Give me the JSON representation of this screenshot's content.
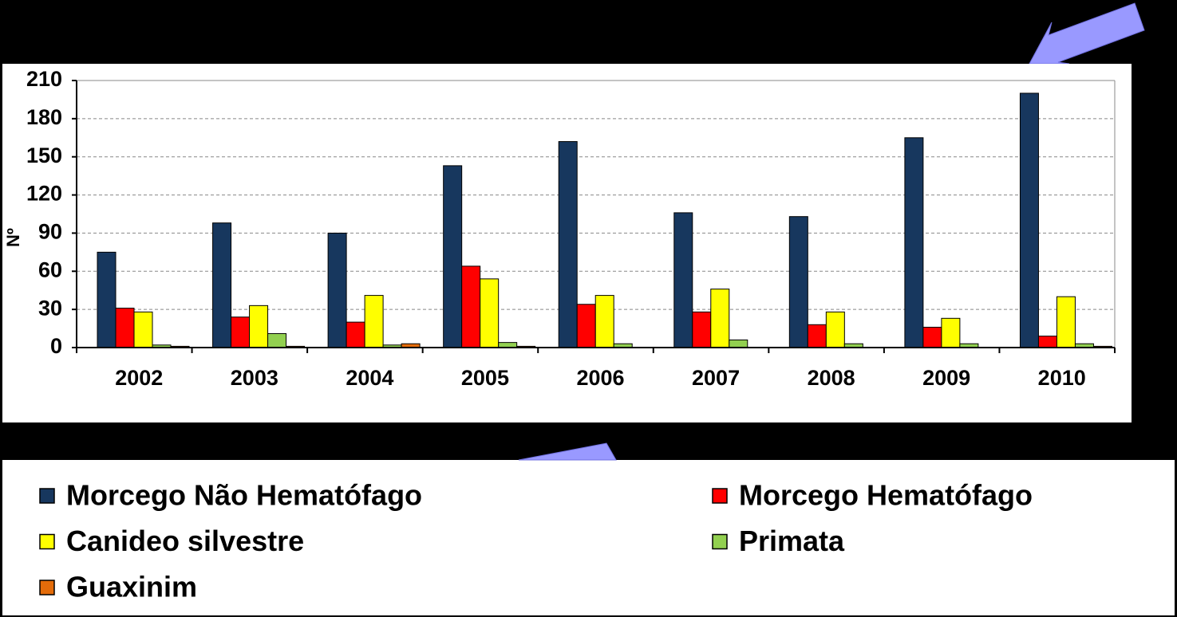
{
  "chart_data": {
    "type": "bar",
    "y_label": "Nº",
    "categories": [
      "2002",
      "2003",
      "2004",
      "2005",
      "2006",
      "2007",
      "2008",
      "2009",
      "2010"
    ],
    "series": [
      {
        "name": "Morcego Não Hematófago",
        "color": "#17375e",
        "values": [
          75,
          98,
          90,
          143,
          162,
          106,
          103,
          165,
          200
        ]
      },
      {
        "name": "Morcego Hematófago",
        "color": "#ff0000",
        "values": [
          31,
          24,
          20,
          64,
          34,
          28,
          18,
          16,
          9
        ]
      },
      {
        "name": "Canideo silvestre",
        "color": "#ffff00",
        "values": [
          28,
          33,
          41,
          54,
          41,
          46,
          28,
          23,
          40
        ]
      },
      {
        "name": "Primata",
        "color": "#92d050",
        "values": [
          2,
          11,
          2,
          4,
          3,
          6,
          3,
          3,
          3
        ]
      },
      {
        "name": "Guaxinim",
        "color": "#e46c0a",
        "values": [
          1,
          1,
          3,
          1,
          0,
          0,
          0,
          0,
          1
        ]
      }
    ],
    "ylim": [
      0,
      210
    ],
    "yticks": [
      0,
      30,
      60,
      90,
      120,
      150,
      180,
      210
    ],
    "grid": true
  }
}
